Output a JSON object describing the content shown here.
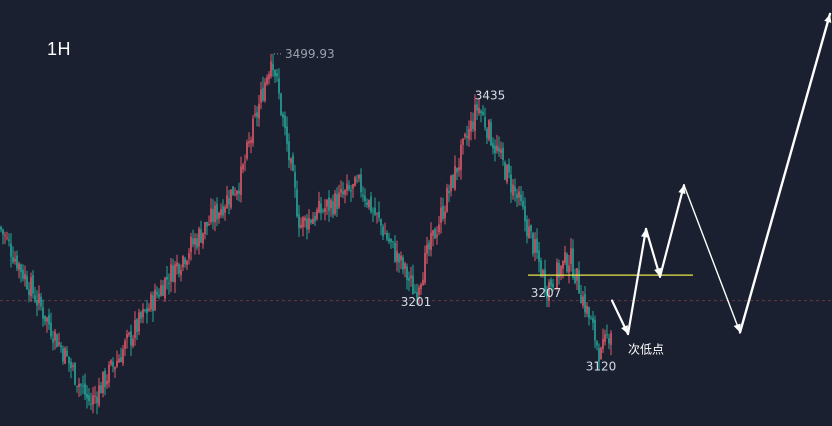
{
  "colors": {
    "background": "#1b2030",
    "up": "#e05a6a",
    "down": "#26a69a",
    "support_line": "#e8e84a",
    "reference_line": "#5c3b48",
    "projection": "#ffffff"
  },
  "chart_data": {
    "type": "candlestick",
    "timeframe": "1H",
    "ylim": [
      3040,
      3560
    ],
    "grid": false,
    "legend": "none",
    "key_points": [
      {
        "name": "start",
        "x": 0,
        "y": 3282
      },
      {
        "name": "early-low",
        "x": 90,
        "y": 3060
      },
      {
        "name": "mid-high",
        "x": 165,
        "y": 3215
      },
      {
        "name": "rally",
        "x": 240,
        "y": 3340
      },
      {
        "name": "peak",
        "x": 272,
        "y": 3499.93
      },
      {
        "name": "pullback",
        "x": 300,
        "y": 3285
      },
      {
        "name": "local-high",
        "x": 360,
        "y": 3335
      },
      {
        "name": "low",
        "x": 415,
        "y": 3201
      },
      {
        "name": "second-peak",
        "x": 478,
        "y": 3435
      },
      {
        "name": "decline",
        "x": 520,
        "y": 3310
      },
      {
        "name": "support",
        "x": 547,
        "y": 3207
      },
      {
        "name": "bounce",
        "x": 570,
        "y": 3245
      },
      {
        "name": "bottom",
        "x": 601,
        "y": 3120
      },
      {
        "name": "last",
        "x": 612,
        "y": 3160
      }
    ],
    "labels": {
      "peak": "3499.93",
      "second_peak": "3435",
      "low": "3201",
      "support": "3207",
      "bottom": "3120",
      "secondary_low": "次低点"
    },
    "support_level": 3207,
    "reference_level": 3190,
    "projection": [
      {
        "x": 612,
        "y": 3190
      },
      {
        "x": 628,
        "y": 3148
      },
      {
        "x": 646,
        "y": 3280
      },
      {
        "x": 660,
        "y": 3220
      },
      {
        "x": 684,
        "y": 3335
      },
      {
        "x": 740,
        "y": 3150
      },
      {
        "x": 830,
        "y": 3550
      }
    ]
  }
}
